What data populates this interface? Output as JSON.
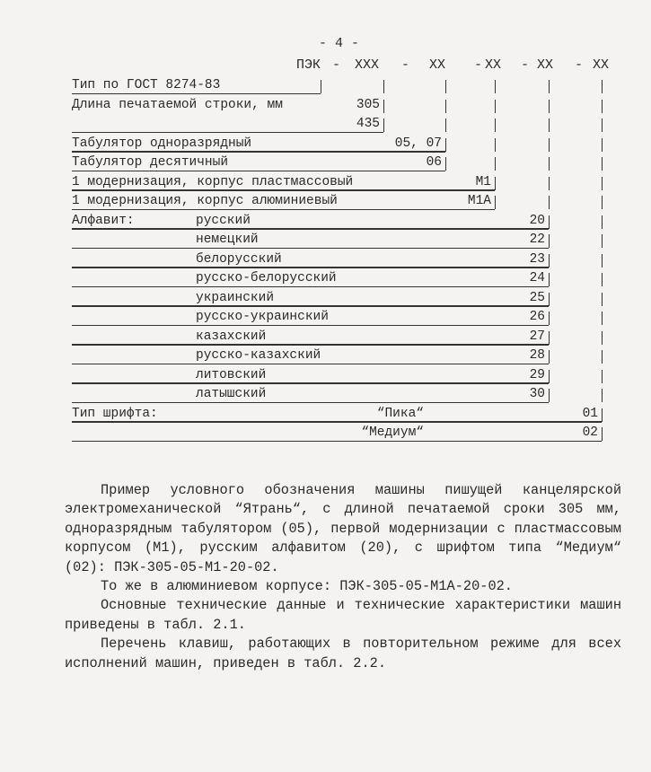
{
  "page_number": "- 4 -",
  "code_header": [
    "ПЭК",
    "-",
    "XXX",
    "-",
    "XX",
    "-",
    "XX",
    "-",
    "XX",
    "-",
    "XX"
  ],
  "rows": [
    {
      "label": "Тип по ГОСТ 8274-83",
      "sub": "",
      "mid": "",
      "value": "",
      "col": 0,
      "underline": true
    },
    {
      "label": "Длина печатаемой строки, мм",
      "sub": "",
      "mid": "",
      "value": "305",
      "col": 1,
      "underline": false
    },
    {
      "label": "",
      "sub": "",
      "mid": "",
      "value": "435",
      "col": 1,
      "underline": true
    },
    {
      "label": "Табулятор одноразрядный",
      "sub": "",
      "mid": "",
      "value": "05, 07",
      "col": 2,
      "underline": true
    },
    {
      "label": "Табулятор десятичный",
      "sub": "",
      "mid": "",
      "value": "06",
      "col": 2,
      "underline": true
    },
    {
      "label": "1 модернизация, корпус пластмассовый",
      "sub": "",
      "mid": "",
      "value": "M1",
      "col": 3,
      "underline": true
    },
    {
      "label": "1 модернизация, корпус алюминиевый",
      "sub": "",
      "mid": "",
      "value": "M1A",
      "col": 3,
      "underline": true
    },
    {
      "label": "Алфавит:",
      "sub": "русский",
      "mid": "",
      "value": "20",
      "col": 4,
      "underline": true
    },
    {
      "label": "",
      "sub": "немецкий",
      "mid": "",
      "value": "22",
      "col": 4,
      "underline": true
    },
    {
      "label": "",
      "sub": "белорусский",
      "mid": "",
      "value": "23",
      "col": 4,
      "underline": true
    },
    {
      "label": "",
      "sub": "русско-белорусский",
      "mid": "",
      "value": "24",
      "col": 4,
      "underline": true
    },
    {
      "label": "",
      "sub": "украинский",
      "mid": "",
      "value": "25",
      "col": 4,
      "underline": true
    },
    {
      "label": "",
      "sub": "русско-украинский",
      "mid": "",
      "value": "26",
      "col": 4,
      "underline": true
    },
    {
      "label": "",
      "sub": "казахский",
      "mid": "",
      "value": "27",
      "col": 4,
      "underline": true
    },
    {
      "label": "",
      "sub": "русско-казахский",
      "mid": "",
      "value": "28",
      "col": 4,
      "underline": true
    },
    {
      "label": "",
      "sub": "литовский",
      "mid": "",
      "value": "29",
      "col": 4,
      "underline": true
    },
    {
      "label": "",
      "sub": "латышский",
      "mid": "",
      "value": "30",
      "col": 4,
      "underline": true
    },
    {
      "label": "Тип шрифта:",
      "sub": "",
      "mid": "“Пика“",
      "value": "01",
      "col": 5,
      "underline": true
    },
    {
      "label": "",
      "sub": "",
      "mid": "“Медиум“",
      "value": "02",
      "col": 5,
      "underline": true
    }
  ],
  "paragraphs": [
    "Пример условного обозначения машины пишущей канцелярской электро­механической “Ятрань“, с длиной печатаемой сроки 305 мм, одноразрядным табулятором (05), первой модернизации с пластмассовым корпусом (M1), русским алфавитом (20), с шрифтом типа “Медиум“ (02): ПЭК-305-05-M1-20-02.",
    "То же в алюминиевом корпусе: ПЭК-305-05-M1A-20-02.",
    "Основные технические данные и технические характеристики машин приведены в табл. 2.1.",
    "Перечень клавиш, работающих в повторительном режиме для всех ис­полнений машин, приведен в табл. 2.2."
  ]
}
